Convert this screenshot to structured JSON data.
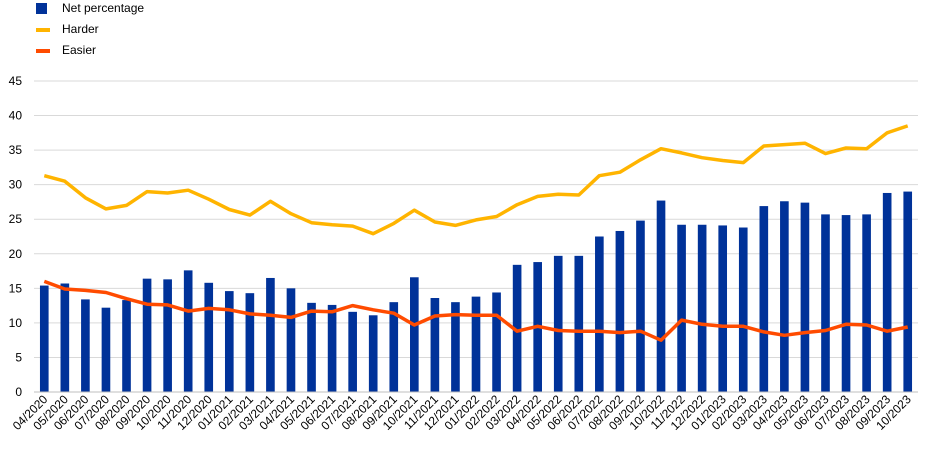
{
  "chart_data": {
    "type": "bar",
    "categories": [
      "04/2020",
      "05/2020",
      "06/2020",
      "07/2020",
      "08/2020",
      "09/2020",
      "10/2020",
      "11/2020",
      "12/2020",
      "01/2021",
      "02/2021",
      "03/2021",
      "04/2021",
      "05/2021",
      "06/2021",
      "07/2021",
      "08/2021",
      "09/2021",
      "10/2021",
      "11/2021",
      "12/2021",
      "01/2022",
      "02/2022",
      "03/2022",
      "04/2022",
      "05/2022",
      "06/2022",
      "07/2022",
      "08/2022",
      "09/2022",
      "10/2022",
      "11/2022",
      "12/2022",
      "01/2023",
      "02/2023",
      "03/2023",
      "04/2023",
      "05/2023",
      "06/2023",
      "07/2023",
      "08/2023",
      "09/2023",
      "10/2023"
    ],
    "series": [
      {
        "name": "Net percentage",
        "type": "bar",
        "color": "#003299",
        "values": [
          15.4,
          15.7,
          13.4,
          12.2,
          13.3,
          16.4,
          16.3,
          17.6,
          15.8,
          14.6,
          14.3,
          16.5,
          15.0,
          12.9,
          12.6,
          11.6,
          11.1,
          13.0,
          16.6,
          13.6,
          13.0,
          13.8,
          14.4,
          18.4,
          18.8,
          19.7,
          19.7,
          22.5,
          23.3,
          24.8,
          27.7,
          24.2,
          24.2,
          24.1,
          23.8,
          26.9,
          27.6,
          27.4,
          25.7,
          25.6,
          25.7,
          28.8,
          29.0
        ]
      },
      {
        "name": "Harder",
        "type": "line",
        "color": "#FFB400",
        "values": [
          31.3,
          30.5,
          28.1,
          26.5,
          27.0,
          29.0,
          28.8,
          29.2,
          27.9,
          26.4,
          25.6,
          27.6,
          25.8,
          24.5,
          24.2,
          24.0,
          22.9,
          24.4,
          26.3,
          24.6,
          24.1,
          24.9,
          25.4,
          27.1,
          28.3,
          28.6,
          28.5,
          31.3,
          31.8,
          33.6,
          35.2,
          34.6,
          33.9,
          33.5,
          33.2,
          35.6,
          35.8,
          36.0,
          34.5,
          35.3,
          35.2,
          37.5,
          38.5
        ]
      },
      {
        "name": "Easier",
        "type": "line",
        "color": "#FF4B00",
        "values": [
          16.0,
          14.9,
          14.7,
          14.4,
          13.5,
          12.7,
          12.6,
          11.7,
          12.1,
          11.9,
          11.3,
          11.1,
          10.8,
          11.7,
          11.6,
          12.5,
          11.9,
          11.4,
          9.7,
          11.0,
          11.2,
          11.1,
          11.1,
          8.8,
          9.5,
          8.9,
          8.8,
          8.8,
          8.6,
          8.8,
          7.5,
          10.4,
          9.8,
          9.5,
          9.5,
          8.7,
          8.2,
          8.6,
          8.9,
          9.8,
          9.7,
          8.8,
          9.4
        ]
      }
    ],
    "yaxis": {
      "min": 0,
      "max": 45,
      "ticks": [
        0,
        5,
        10,
        15,
        20,
        25,
        30,
        35,
        40,
        45
      ]
    },
    "grid": true,
    "legend_position": "top-left"
  }
}
